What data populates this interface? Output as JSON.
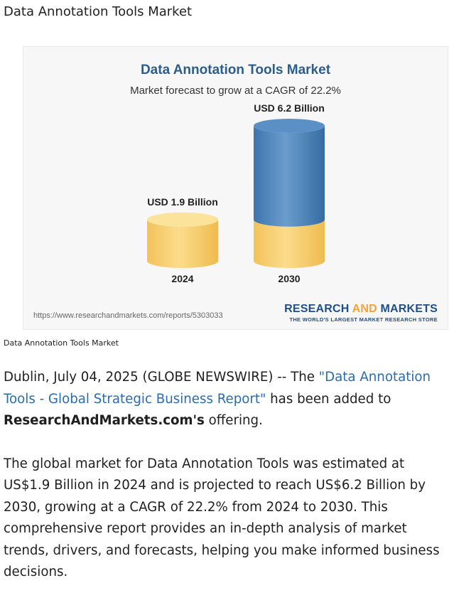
{
  "page": {
    "title": "Data Annotation Tools Market",
    "caption": "Data Annotation Tools Market"
  },
  "figure": {
    "title": "Data Annotation Tools Market",
    "subtitle": "Market forecast to grow at a CAGR of 22.2%",
    "source_url": "https://www.researchandmarkets.com/reports/5303033",
    "brand": {
      "name_part1": "RESEARCH ",
      "name_part2": "AND",
      "name_part3": " MARKETS",
      "tagline": "THE WORLD'S LARGEST MARKET RESEARCH STORE"
    },
    "colors": {
      "yellow": "#f6cd6b",
      "blue": "#4f86bd",
      "title_blue": "#2b5e8c",
      "brand_blue": "#1f4f8b",
      "brand_orange": "#f2a33a"
    }
  },
  "chart_data": {
    "type": "bar",
    "title": "Data Annotation Tools Market",
    "subtitle": "Market forecast to grow at a CAGR of 22.2%",
    "categories": [
      "2024",
      "2030"
    ],
    "values": [
      1.9,
      6.2
    ],
    "value_labels": [
      "USD 1.9 Billion",
      "USD 6.2 Billion"
    ],
    "unit": "USD Billion",
    "grid": false
  },
  "article": {
    "p1_lead": "Dublin, July 04, 2025 (GLOBE NEWSWIRE) -- The ",
    "p1_link": "\"Data Annotation Tools - Global Strategic Business Report\"",
    "p1_mid": " has been added to ",
    "p1_bold": "ResearchAndMarkets.com's",
    "p1_end": " offering.",
    "p2": "The global market for Data Annotation Tools was estimated at US$1.9 Billion in 2024 and is projected to reach US$6.2 Billion by 2030, growing at a CAGR of 22.2% from 2024 to 2030. This comprehensive report provides an in-depth analysis of market trends, drivers, and forecasts, helping you make informed business decisions."
  }
}
